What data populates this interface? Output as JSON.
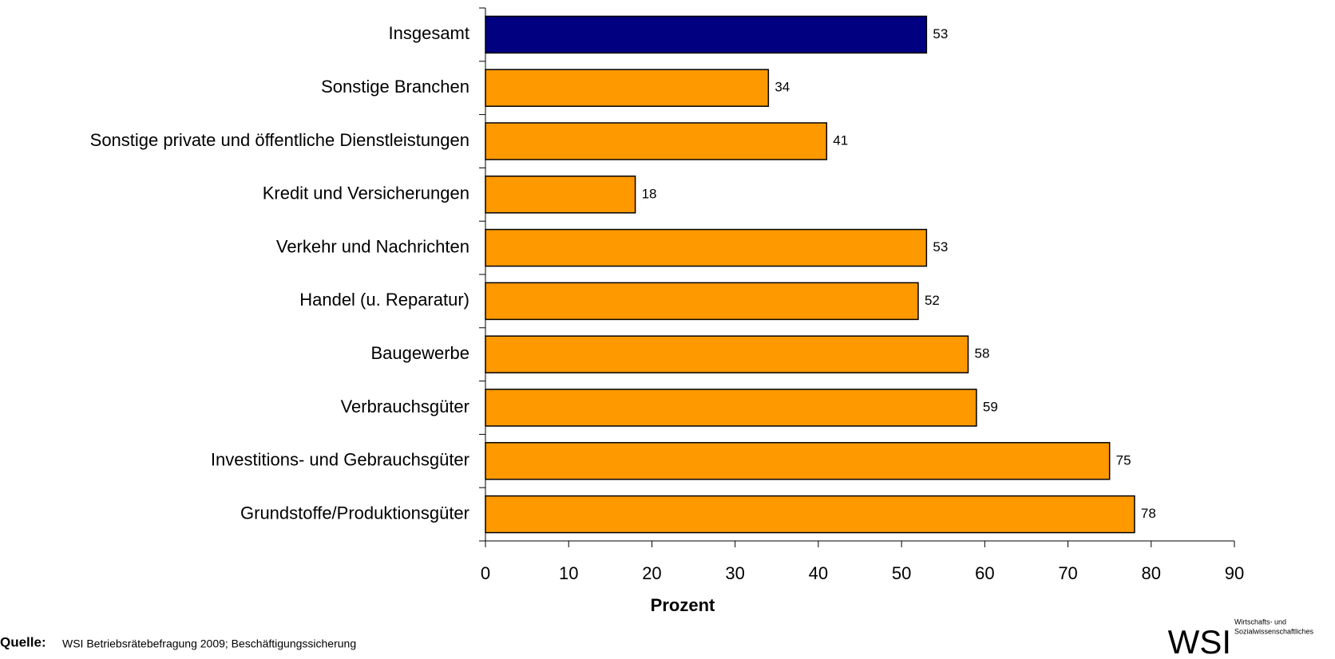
{
  "chart_data": {
    "type": "bar",
    "orientation": "horizontal",
    "categories": [
      "Insgesamt",
      "Sonstige Branchen",
      "Sonstige private und öffentliche Dienstleistungen",
      "Kredit und Versicherungen",
      "Verkehr und Nachrichten",
      "Handel (u. Reparatur)",
      "Baugewerbe",
      "Verbrauchsgüter",
      "Investitions- und Gebrauchsgüter",
      "Grundstoffe/Produktionsgüter"
    ],
    "values": [
      53,
      34,
      41,
      18,
      53,
      52,
      58,
      59,
      75,
      78
    ],
    "colors": [
      "#000080",
      "#ff9900",
      "#ff9900",
      "#ff9900",
      "#ff9900",
      "#ff9900",
      "#ff9900",
      "#ff9900",
      "#ff9900",
      "#ff9900"
    ],
    "xlim": [
      0,
      90
    ],
    "xticks": [
      0,
      10,
      20,
      30,
      40,
      50,
      60,
      70,
      80,
      90
    ],
    "xlabel": "Prozent",
    "source_label": "Quelle:",
    "source": "WSI Betriebsrätebefragung 2009; Beschäftigungssicherung",
    "logo": {
      "text": "WSI",
      "line1": "Wirtschafts- und",
      "line2": "Sozialwissenschaftliches"
    }
  }
}
